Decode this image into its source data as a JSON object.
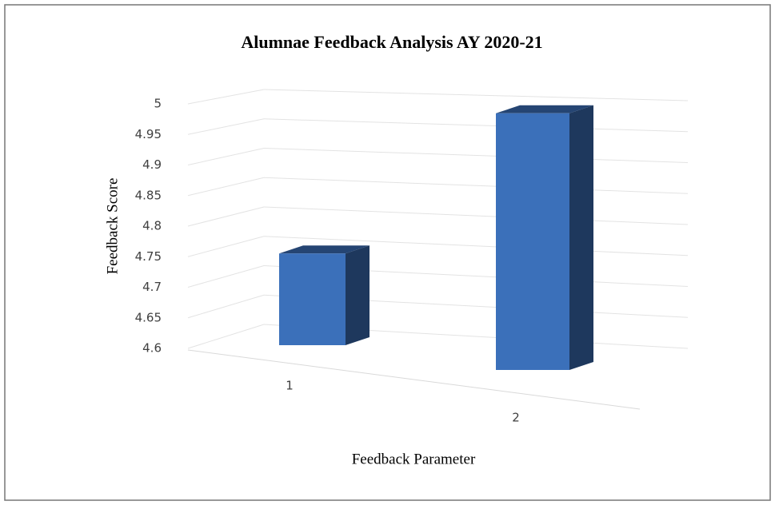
{
  "chart_data": {
    "type": "bar3d",
    "title": "Alumnae Feedback Analysis AY 2020-21",
    "y_label": "Feedback Score",
    "x_label": "Feedback Parameter",
    "categories": [
      "1",
      "2"
    ],
    "values": [
      4.75,
      4.98
    ],
    "color": "#3b70ba",
    "ylim": [
      4.6,
      5
    ],
    "yticks": [
      4.6,
      4.65,
      4.7,
      4.75,
      4.8,
      4.85,
      4.9,
      4.95,
      5
    ],
    "grid": true
  }
}
